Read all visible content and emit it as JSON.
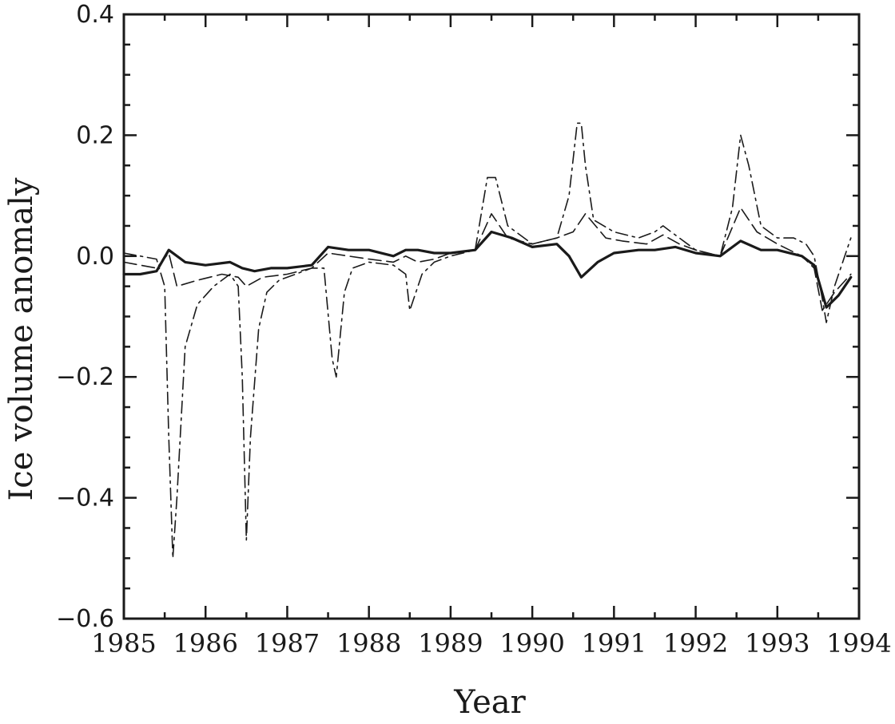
{
  "chart_data": {
    "type": "line",
    "title": "",
    "xlabel": "Year",
    "ylabel": "Ice volume anomaly",
    "xlim": [
      1985,
      1994
    ],
    "ylim": [
      -0.6,
      0.4
    ],
    "x_ticks": [
      {
        "value": 1985,
        "label": "1985"
      },
      {
        "value": 1986,
        "label": "1986"
      },
      {
        "value": 1987,
        "label": "1987"
      },
      {
        "value": 1988,
        "label": "1988"
      },
      {
        "value": 1989,
        "label": "1989"
      },
      {
        "value": 1990,
        "label": "1990"
      },
      {
        "value": 1991,
        "label": "1991"
      },
      {
        "value": 1992,
        "label": "1992"
      },
      {
        "value": 1993,
        "label": "1993"
      },
      {
        "value": 1994,
        "label": "1994"
      }
    ],
    "y_ticks": [
      {
        "value": 0.4,
        "label": "0.4"
      },
      {
        "value": 0.2,
        "label": "0.2"
      },
      {
        "value": 0.0,
        "label": "0.0"
      },
      {
        "value": -0.2,
        "label": "−0.2"
      },
      {
        "value": -0.4,
        "label": "−0.4"
      },
      {
        "value": -0.6,
        "label": "−0.6"
      }
    ],
    "grid": false,
    "legend": "none",
    "series": [
      {
        "style": "solid",
        "color": "#1a1a1a",
        "x": [
          1985.0,
          1985.2,
          1985.4,
          1985.55,
          1985.75,
          1986.0,
          1986.3,
          1986.45,
          1986.6,
          1986.8,
          1987.0,
          1987.3,
          1987.5,
          1987.75,
          1988.0,
          1988.3,
          1988.45,
          1988.6,
          1988.8,
          1989.0,
          1989.3,
          1989.5,
          1989.75,
          1990.0,
          1990.3,
          1990.45,
          1990.6,
          1990.8,
          1991.0,
          1991.3,
          1991.5,
          1991.75,
          1992.0,
          1992.3,
          1992.55,
          1992.8,
          1993.0,
          1993.3,
          1993.45,
          1993.6,
          1993.75,
          1993.9
        ],
        "y": [
          -0.03,
          -0.03,
          -0.025,
          0.01,
          -0.01,
          -0.015,
          -0.01,
          -0.02,
          -0.025,
          -0.02,
          -0.02,
          -0.015,
          0.015,
          0.01,
          0.01,
          0.0,
          0.01,
          0.01,
          0.005,
          0.005,
          0.01,
          0.04,
          0.03,
          0.015,
          0.02,
          0.0,
          -0.035,
          -0.01,
          0.005,
          0.01,
          0.01,
          0.015,
          0.005,
          0.0,
          0.025,
          0.01,
          0.01,
          0.0,
          -0.015,
          -0.085,
          -0.065,
          -0.035
        ]
      },
      {
        "style": "dashed",
        "color": "#1a1a1a",
        "x": [
          1985.0,
          1985.2,
          1985.4,
          1985.55,
          1985.65,
          1985.9,
          1986.2,
          1986.4,
          1986.5,
          1986.7,
          1987.0,
          1987.3,
          1987.5,
          1987.75,
          1988.0,
          1988.3,
          1988.45,
          1988.6,
          1988.8,
          1989.0,
          1989.3,
          1989.5,
          1989.7,
          1990.0,
          1990.3,
          1990.5,
          1990.65,
          1990.9,
          1991.1,
          1991.4,
          1991.6,
          1991.8,
          1992.0,
          1992.3,
          1992.55,
          1992.75,
          1993.0,
          1993.3,
          1993.45,
          1993.55,
          1993.7,
          1993.9
        ],
        "y": [
          -0.01,
          -0.015,
          -0.02,
          0.005,
          -0.05,
          -0.04,
          -0.03,
          -0.035,
          -0.05,
          -0.035,
          -0.03,
          -0.02,
          0.005,
          0.0,
          -0.005,
          -0.01,
          0.0,
          -0.01,
          -0.005,
          0.005,
          0.01,
          0.07,
          0.03,
          0.02,
          0.03,
          0.04,
          0.07,
          0.03,
          0.025,
          0.02,
          0.035,
          0.02,
          0.01,
          0.0,
          0.08,
          0.04,
          0.02,
          0.0,
          -0.02,
          -0.09,
          -0.06,
          -0.03
        ]
      },
      {
        "style": "dashdot",
        "color": "#1a1a1a",
        "x": [
          1985.0,
          1985.2,
          1985.4,
          1985.5,
          1985.55,
          1985.6,
          1985.65,
          1985.75,
          1985.9,
          1986.1,
          1986.3,
          1986.4,
          1986.45,
          1986.5,
          1986.55,
          1986.65,
          1986.75,
          1986.9,
          1987.1,
          1987.3,
          1987.45,
          1987.55,
          1987.6,
          1987.7,
          1987.8,
          1988.0,
          1988.3,
          1988.45,
          1988.5,
          1988.55,
          1988.65,
          1988.8,
          1989.0,
          1989.3,
          1989.45,
          1989.55,
          1989.7,
          1990.0,
          1990.3,
          1990.45,
          1990.55,
          1990.6,
          1990.65,
          1990.75,
          1991.0,
          1991.3,
          1991.5,
          1991.6,
          1991.8,
          1992.0,
          1992.3,
          1992.45,
          1992.55,
          1992.65,
          1992.8,
          1993.0,
          1993.2,
          1993.35,
          1993.45,
          1993.55,
          1993.6,
          1993.7,
          1993.9
        ],
        "y": [
          0.005,
          0.0,
          -0.005,
          -0.05,
          -0.3,
          -0.5,
          -0.4,
          -0.15,
          -0.08,
          -0.05,
          -0.03,
          -0.05,
          -0.2,
          -0.47,
          -0.3,
          -0.12,
          -0.06,
          -0.04,
          -0.03,
          -0.02,
          -0.02,
          -0.17,
          -0.2,
          -0.06,
          -0.02,
          -0.01,
          -0.015,
          -0.03,
          -0.09,
          -0.07,
          -0.03,
          -0.01,
          0.0,
          0.01,
          0.13,
          0.13,
          0.05,
          0.02,
          0.03,
          0.1,
          0.22,
          0.22,
          0.15,
          0.06,
          0.04,
          0.03,
          0.04,
          0.05,
          0.03,
          0.01,
          0.0,
          0.08,
          0.2,
          0.15,
          0.05,
          0.03,
          0.03,
          0.02,
          0.0,
          -0.07,
          -0.11,
          -0.05,
          0.03
        ]
      }
    ]
  }
}
